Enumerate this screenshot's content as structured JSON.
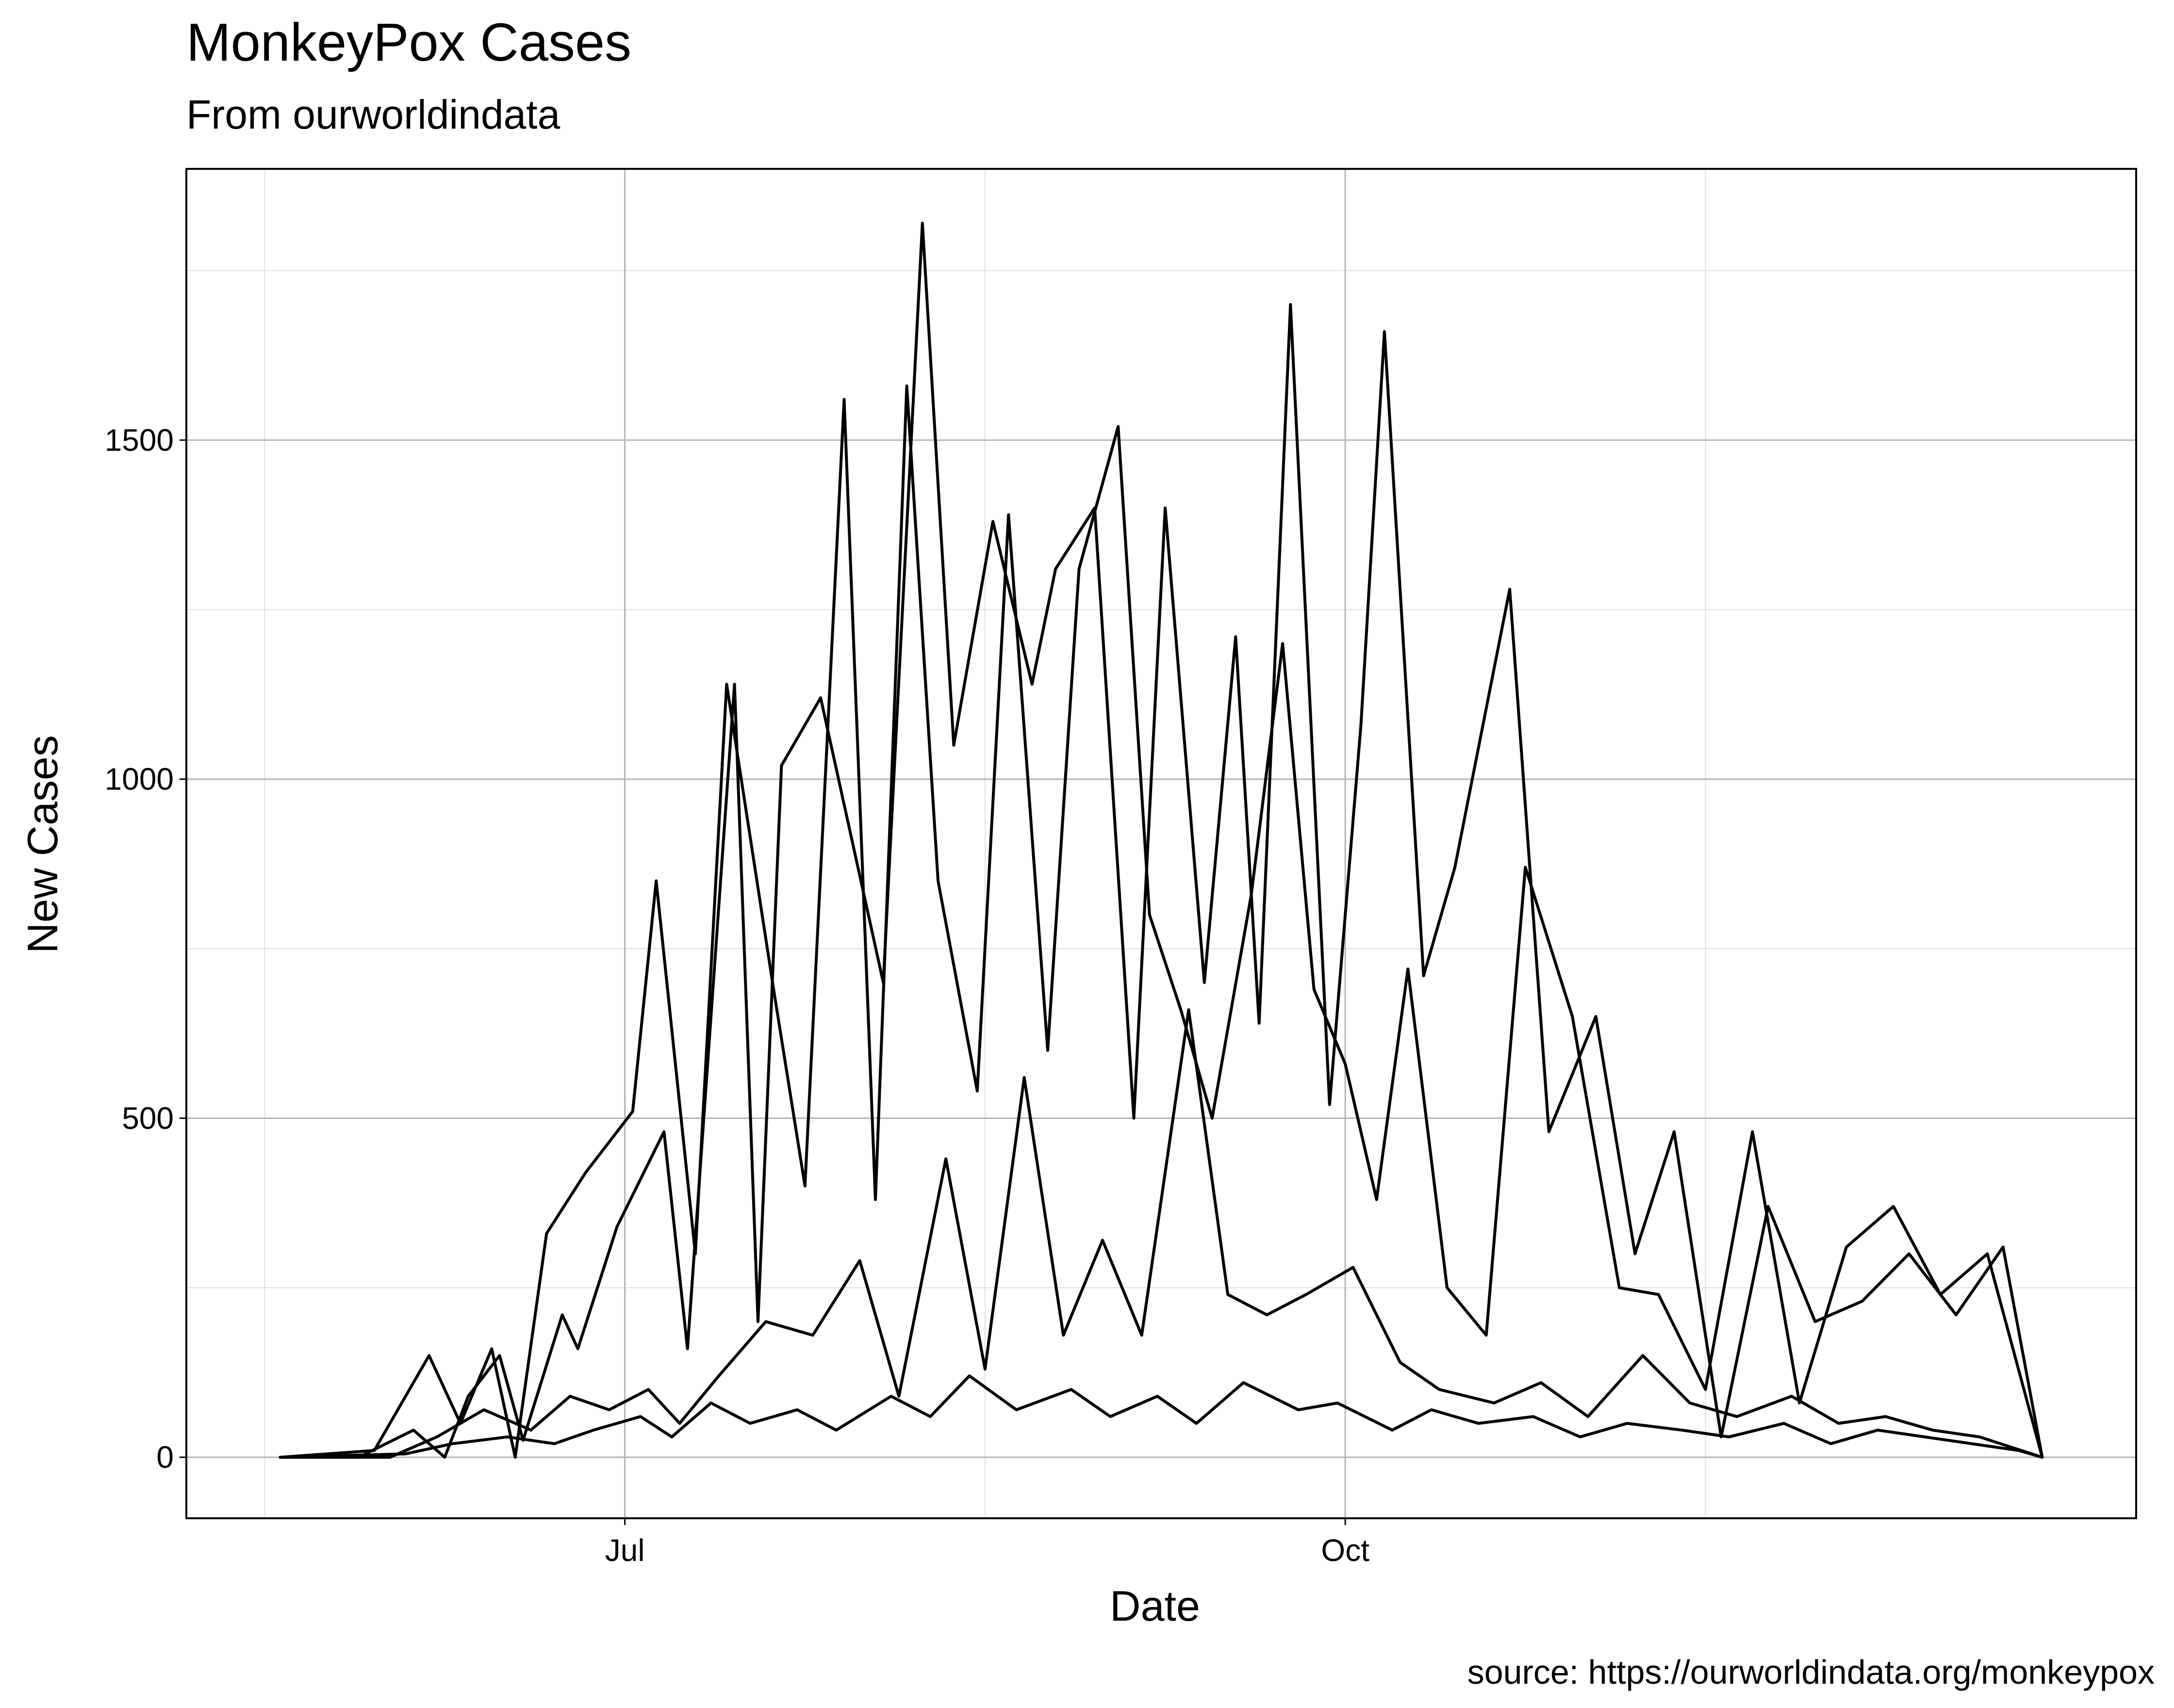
{
  "chart_data": {
    "type": "line",
    "title": "MonkeyPox Cases",
    "subtitle": "From ourworldindata",
    "xlabel": "Date",
    "ylabel": "New Cases",
    "caption": "source: https://ourworldindata.org/monkeypox",
    "x_ticks": [
      {
        "label": "Jul",
        "date": "2022-07-01"
      },
      {
        "label": "Oct",
        "date": "2022-10-01"
      }
    ],
    "y_ticks": [
      0,
      500,
      1000,
      1500
    ],
    "xlim": [
      "2022-05-06",
      "2023-01-10"
    ],
    "ylim": [
      -90,
      1900
    ],
    "grid": true,
    "legend": "none",
    "line_color": "#000000",
    "series": [
      {
        "x": [
          "2022-05-18",
          "2022-05-28",
          "2022-06-04",
          "2022-06-08",
          "2022-06-11",
          "2022-06-15",
          "2022-06-18",
          "2022-06-23",
          "2022-06-25",
          "2022-06-30",
          "2022-07-06",
          "2022-07-09",
          "2022-07-15",
          "2022-07-18",
          "2022-07-21",
          "2022-07-26",
          "2022-08-03",
          "2022-08-08",
          "2022-08-12",
          "2022-08-17",
          "2022-08-22",
          "2022-08-25",
          "2022-08-30",
          "2022-09-04",
          "2022-09-08",
          "2022-09-13",
          "2022-09-17",
          "2022-09-20",
          "2022-09-24",
          "2022-09-29",
          "2022-10-03",
          "2022-10-06",
          "2022-10-11",
          "2022-10-15",
          "2022-10-22",
          "2022-10-27",
          "2022-11-02",
          "2022-11-07",
          "2022-11-12",
          "2022-11-18",
          "2022-11-24",
          "2022-11-30",
          "2022-12-06",
          "2022-12-12",
          "2022-12-18",
          "2022-12-24",
          "2022-12-29"
        ],
        "y": [
          0,
          0,
          40,
          0,
          90,
          150,
          25,
          210,
          160,
          340,
          480,
          160,
          1140,
          200,
          1020,
          1120,
          700,
          1820,
          1050,
          1380,
          1140,
          1310,
          1400,
          500,
          1400,
          700,
          1210,
          640,
          1700,
          520,
          1080,
          1660,
          710,
          870,
          1280,
          480,
          650,
          300,
          480,
          30,
          370,
          200,
          230,
          300,
          210,
          310,
          0
        ]
      },
      {
        "x": [
          "2022-05-18",
          "2022-05-30",
          "2022-06-06",
          "2022-06-10",
          "2022-06-14",
          "2022-06-17",
          "2022-06-21",
          "2022-06-26",
          "2022-07-02",
          "2022-07-05",
          "2022-07-10",
          "2022-07-14",
          "2022-07-20",
          "2022-07-24",
          "2022-07-29",
          "2022-08-02",
          "2022-08-06",
          "2022-08-10",
          "2022-08-15",
          "2022-08-19",
          "2022-08-24",
          "2022-08-28",
          "2022-09-02",
          "2022-09-06",
          "2022-09-10",
          "2022-09-14",
          "2022-09-19",
          "2022-09-23",
          "2022-09-27",
          "2022-10-01",
          "2022-10-05",
          "2022-10-09",
          "2022-10-14",
          "2022-10-19",
          "2022-10-24",
          "2022-10-30",
          "2022-11-05",
          "2022-11-10",
          "2022-11-16",
          "2022-11-22",
          "2022-11-28",
          "2022-12-04",
          "2022-12-10",
          "2022-12-16",
          "2022-12-22",
          "2022-12-29"
        ],
        "y": [
          0,
          10,
          150,
          50,
          160,
          0,
          330,
          420,
          510,
          850,
          300,
          1140,
          690,
          400,
          1560,
          380,
          1580,
          850,
          540,
          1390,
          600,
          1310,
          1520,
          800,
          660,
          500,
          830,
          1200,
          690,
          580,
          380,
          720,
          250,
          180,
          870,
          650,
          250,
          240,
          100,
          480,
          80,
          310,
          370,
          240,
          300,
          0
        ]
      },
      {
        "x": [
          "2022-05-18",
          "2022-06-01",
          "2022-06-07",
          "2022-06-13",
          "2022-06-19",
          "2022-06-24",
          "2022-06-29",
          "2022-07-04",
          "2022-07-08",
          "2022-07-13",
          "2022-07-19",
          "2022-07-25",
          "2022-07-31",
          "2022-08-05",
          "2022-08-11",
          "2022-08-16",
          "2022-08-21",
          "2022-08-26",
          "2022-08-31",
          "2022-09-05",
          "2022-09-11",
          "2022-09-16",
          "2022-09-21",
          "2022-09-26",
          "2022-10-02",
          "2022-10-08",
          "2022-10-13",
          "2022-10-20",
          "2022-10-26",
          "2022-11-01",
          "2022-11-08",
          "2022-11-14",
          "2022-11-20",
          "2022-11-27",
          "2022-12-03",
          "2022-12-09",
          "2022-12-15",
          "2022-12-21",
          "2022-12-29"
        ],
        "y": [
          0,
          0,
          30,
          70,
          40,
          90,
          70,
          100,
          50,
          120,
          200,
          180,
          290,
          90,
          440,
          130,
          560,
          180,
          320,
          180,
          660,
          240,
          210,
          240,
          280,
          140,
          100,
          80,
          110,
          60,
          150,
          80,
          60,
          90,
          50,
          60,
          40,
          30,
          0
        ]
      },
      {
        "x": [
          "2022-05-18",
          "2022-06-03",
          "2022-06-09",
          "2022-06-16",
          "2022-06-22",
          "2022-06-27",
          "2022-07-03",
          "2022-07-07",
          "2022-07-12",
          "2022-07-17",
          "2022-07-23",
          "2022-07-28",
          "2022-08-04",
          "2022-08-09",
          "2022-08-14",
          "2022-08-20",
          "2022-08-27",
          "2022-09-01",
          "2022-09-07",
          "2022-09-12",
          "2022-09-18",
          "2022-09-25",
          "2022-09-30",
          "2022-10-07",
          "2022-10-12",
          "2022-10-18",
          "2022-10-25",
          "2022-10-31",
          "2022-11-06",
          "2022-11-13",
          "2022-11-19",
          "2022-11-26",
          "2022-12-02",
          "2022-12-08",
          "2022-12-14",
          "2022-12-20",
          "2022-12-26",
          "2022-12-29"
        ],
        "y": [
          0,
          5,
          20,
          30,
          20,
          40,
          60,
          30,
          80,
          50,
          70,
          40,
          90,
          60,
          120,
          70,
          100,
          60,
          90,
          50,
          110,
          70,
          80,
          40,
          70,
          50,
          60,
          30,
          50,
          40,
          30,
          50,
          20,
          40,
          30,
          20,
          10,
          0
        ]
      }
    ]
  }
}
